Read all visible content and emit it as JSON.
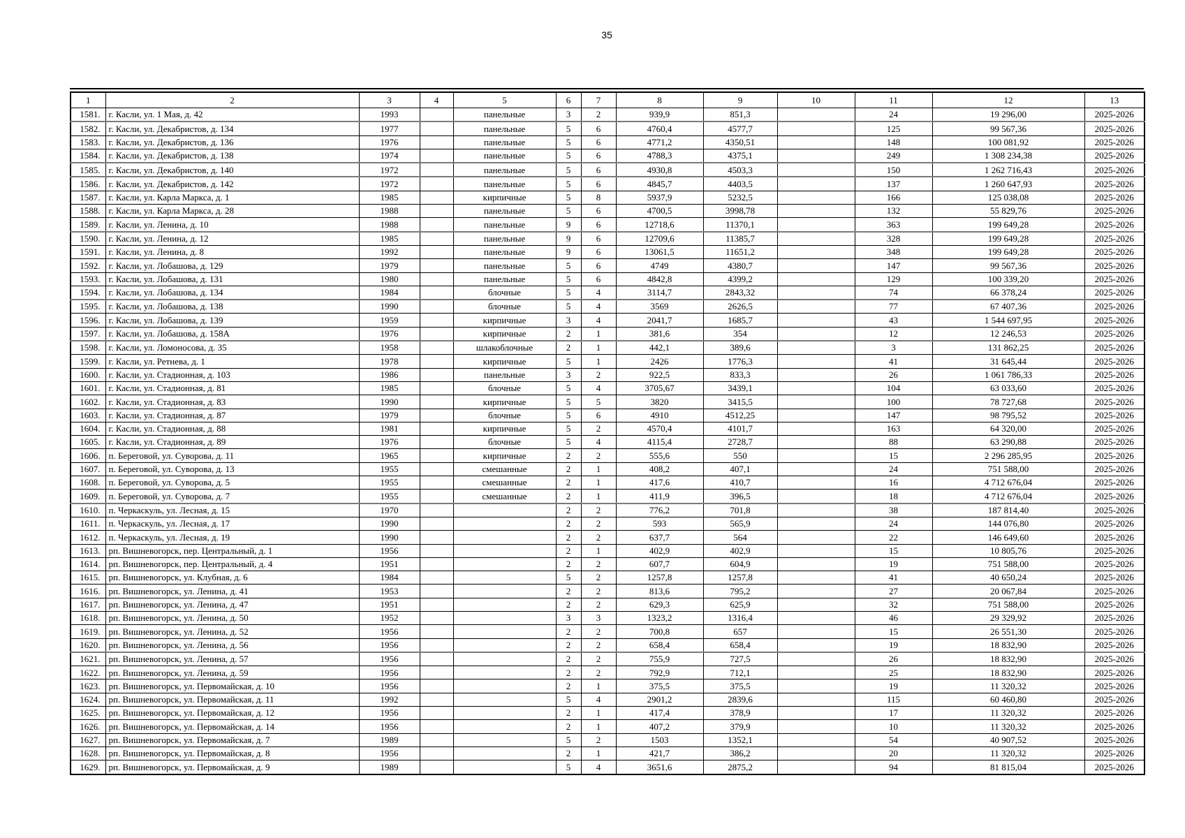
{
  "page": {
    "number": "35"
  },
  "table": {
    "header": [
      "1",
      "2",
      "3",
      "4",
      "5",
      "6",
      "7",
      "8",
      "9",
      "10",
      "11",
      "12",
      "13"
    ],
    "rows": [
      [
        "1581.",
        "г. Касли, ул. 1 Мая, д. 42",
        "1993",
        "",
        "панельные",
        "3",
        "2",
        "939,9",
        "851,3",
        "",
        "24",
        "19 296,00",
        "2025-2026"
      ],
      [
        "1582.",
        "г. Касли, ул. Декабристов, д. 134",
        "1977",
        "",
        "панельные",
        "5",
        "6",
        "4760,4",
        "4577,7",
        "",
        "125",
        "99 567,36",
        "2025-2026"
      ],
      [
        "1583.",
        "г. Касли, ул. Декабристов, д. 136",
        "1976",
        "",
        "панельные",
        "5",
        "6",
        "4771,2",
        "4350,51",
        "",
        "148",
        "100 081,92",
        "2025-2026"
      ],
      [
        "1584.",
        "г. Касли, ул. Декабристов, д. 138",
        "1974",
        "",
        "панельные",
        "5",
        "6",
        "4788,3",
        "4375,1",
        "",
        "249",
        "1 308 234,38",
        "2025-2026"
      ],
      [
        "1585.",
        "г. Касли, ул. Декабристов, д. 140",
        "1972",
        "",
        "панельные",
        "5",
        "6",
        "4930,8",
        "4503,3",
        "",
        "150",
        "1 262 716,43",
        "2025-2026"
      ],
      [
        "1586.",
        "г. Касли, ул. Декабристов, д. 142",
        "1972",
        "",
        "панельные",
        "5",
        "6",
        "4845,7",
        "4403,5",
        "",
        "137",
        "1 260 647,93",
        "2025-2026"
      ],
      [
        "1587.",
        "г. Касли, ул. Карла Маркса, д. 1",
        "1985",
        "",
        "кирпичные",
        "5",
        "8",
        "5937,9",
        "5232,5",
        "",
        "166",
        "125 038,08",
        "2025-2026"
      ],
      [
        "1588.",
        "г. Касли, ул. Карла Маркса, д. 28",
        "1988",
        "",
        "панельные",
        "5",
        "6",
        "4700,5",
        "3998,78",
        "",
        "132",
        "55 829,76",
        "2025-2026"
      ],
      [
        "1589.",
        "г. Касли, ул. Ленина, д. 10",
        "1988",
        "",
        "панельные",
        "9",
        "6",
        "12718,6",
        "11370,1",
        "",
        "363",
        "199 649,28",
        "2025-2026"
      ],
      [
        "1590.",
        "г. Касли, ул. Ленина, д. 12",
        "1985",
        "",
        "панельные",
        "9",
        "6",
        "12709,6",
        "11385,7",
        "",
        "328",
        "199 649,28",
        "2025-2026"
      ],
      [
        "1591.",
        "г. Касли, ул. Ленина, д. 8",
        "1992",
        "",
        "панельные",
        "9",
        "6",
        "13061,5",
        "11651,2",
        "",
        "348",
        "199 649,28",
        "2025-2026"
      ],
      [
        "1592.",
        "г. Касли, ул. Лобашова, д. 129",
        "1979",
        "",
        "панельные",
        "5",
        "6",
        "4749",
        "4380,7",
        "",
        "147",
        "99 567,36",
        "2025-2026"
      ],
      [
        "1593.",
        "г. Касли, ул. Лобашова, д. 131",
        "1980",
        "",
        "панельные",
        "5",
        "6",
        "4842,8",
        "4399,2",
        "",
        "129",
        "100 339,20",
        "2025-2026"
      ],
      [
        "1594.",
        "г. Касли, ул. Лобашова, д. 134",
        "1984",
        "",
        "блочные",
        "5",
        "4",
        "3114,7",
        "2843,32",
        "",
        "74",
        "66 378,24",
        "2025-2026"
      ],
      [
        "1595.",
        "г. Касли, ул. Лобашова, д. 138",
        "1990",
        "",
        "блочные",
        "5",
        "4",
        "3569",
        "2626,5",
        "",
        "77",
        "67 407,36",
        "2025-2026"
      ],
      [
        "1596.",
        "г. Касли, ул. Лобашова, д. 139",
        "1959",
        "",
        "кирпичные",
        "3",
        "4",
        "2041,7",
        "1685,7",
        "",
        "43",
        "1 544 697,95",
        "2025-2026"
      ],
      [
        "1597.",
        "г. Касли, ул. Лобашова, д. 158А",
        "1976",
        "",
        "кирпичные",
        "2",
        "1",
        "381,6",
        "354",
        "",
        "12",
        "12 246,53",
        "2025-2026"
      ],
      [
        "1598.",
        "г. Касли, ул. Ломоносова, д. 35",
        "1958",
        "",
        "шлакоблочные",
        "2",
        "1",
        "442,1",
        "389,6",
        "",
        "3",
        "131 862,25",
        "2025-2026"
      ],
      [
        "1599.",
        "г. Касли, ул. Ретнева, д. 1",
        "1978",
        "",
        "кирпичные",
        "5",
        "1",
        "2426",
        "1776,3",
        "",
        "41",
        "31 645,44",
        "2025-2026"
      ],
      [
        "1600.",
        "г. Касли, ул. Стадионная, д. 103",
        "1986",
        "",
        "панельные",
        "3",
        "2",
        "922,5",
        "833,3",
        "",
        "26",
        "1 061 786,33",
        "2025-2026"
      ],
      [
        "1601.",
        "г. Касли, ул. Стадионная, д. 81",
        "1985",
        "",
        "блочные",
        "5",
        "4",
        "3705,67",
        "3439,1",
        "",
        "104",
        "63 033,60",
        "2025-2026"
      ],
      [
        "1602.",
        "г. Касли, ул. Стадионная, д. 83",
        "1990",
        "",
        "кирпичные",
        "5",
        "5",
        "3820",
        "3415,5",
        "",
        "100",
        "78 727,68",
        "2025-2026"
      ],
      [
        "1603.",
        "г. Касли, ул. Стадионная, д. 87",
        "1979",
        "",
        "блочные",
        "5",
        "6",
        "4910",
        "4512,25",
        "",
        "147",
        "98 795,52",
        "2025-2026"
      ],
      [
        "1604.",
        "г. Касли, ул. Стадионная, д. 88",
        "1981",
        "",
        "кирпичные",
        "5",
        "2",
        "4570,4",
        "4101,7",
        "",
        "163",
        "64 320,00",
        "2025-2026"
      ],
      [
        "1605.",
        "г. Касли, ул. Стадионная, д. 89",
        "1976",
        "",
        "блочные",
        "5",
        "4",
        "4115,4",
        "2728,7",
        "",
        "88",
        "63 290,88",
        "2025-2026"
      ],
      [
        "1606.",
        "п. Береговой, ул. Суворова, д. 11",
        "1965",
        "",
        "кирпичные",
        "2",
        "2",
        "555,6",
        "550",
        "",
        "15",
        "2 296 285,95",
        "2025-2026"
      ],
      [
        "1607.",
        "п. Береговой, ул. Суворова, д. 13",
        "1955",
        "",
        "смешанные",
        "2",
        "1",
        "408,2",
        "407,1",
        "",
        "24",
        "751 588,00",
        "2025-2026"
      ],
      [
        "1608.",
        "п. Береговой, ул. Суворова, д. 5",
        "1955",
        "",
        "смешанные",
        "2",
        "1",
        "417,6",
        "410,7",
        "",
        "16",
        "4 712 676,04",
        "2025-2026"
      ],
      [
        "1609.",
        "п. Береговой, ул. Суворова, д. 7",
        "1955",
        "",
        "смешанные",
        "2",
        "1",
        "411,9",
        "396,5",
        "",
        "18",
        "4 712 676,04",
        "2025-2026"
      ],
      [
        "1610.",
        "п. Черкаскуль, ул. Лесная, д. 15",
        "1970",
        "",
        "",
        "2",
        "2",
        "776,2",
        "701,8",
        "",
        "38",
        "187 814,40",
        "2025-2026"
      ],
      [
        "1611.",
        "п. Черкаскуль, ул. Лесная, д. 17",
        "1990",
        "",
        "",
        "2",
        "2",
        "593",
        "565,9",
        "",
        "24",
        "144 076,80",
        "2025-2026"
      ],
      [
        "1612.",
        "п. Черкаскуль, ул. Лесная, д. 19",
        "1990",
        "",
        "",
        "2",
        "2",
        "637,7",
        "564",
        "",
        "22",
        "146 649,60",
        "2025-2026"
      ],
      [
        "1613.",
        "рп. Вишневогорск, пер. Центральный, д. 1",
        "1956",
        "",
        "",
        "2",
        "1",
        "402,9",
        "402,9",
        "",
        "15",
        "10 805,76",
        "2025-2026"
      ],
      [
        "1614.",
        "рп. Вишневогорск, пер. Центральный, д. 4",
        "1951",
        "",
        "",
        "2",
        "2",
        "607,7",
        "604,9",
        "",
        "19",
        "751 588,00",
        "2025-2026"
      ],
      [
        "1615.",
        "рп. Вишневогорск, ул. Клубная, д. 6",
        "1984",
        "",
        "",
        "5",
        "2",
        "1257,8",
        "1257,8",
        "",
        "41",
        "40 650,24",
        "2025-2026"
      ],
      [
        "1616.",
        "рп. Вишневогорск, ул. Ленина, д. 41",
        "1953",
        "",
        "",
        "2",
        "2",
        "813,6",
        "795,2",
        "",
        "27",
        "20 067,84",
        "2025-2026"
      ],
      [
        "1617.",
        "рп. Вишневогорск, ул. Ленина, д. 47",
        "1951",
        "",
        "",
        "2",
        "2",
        "629,3",
        "625,9",
        "",
        "32",
        "751 588,00",
        "2025-2026"
      ],
      [
        "1618.",
        "рп. Вишневогорск, ул. Ленина, д. 50",
        "1952",
        "",
        "",
        "3",
        "3",
        "1323,2",
        "1316,4",
        "",
        "46",
        "29 329,92",
        "2025-2026"
      ],
      [
        "1619.",
        "рп. Вишневогорск, ул. Ленина, д. 52",
        "1956",
        "",
        "",
        "2",
        "2",
        "700,8",
        "657",
        "",
        "15",
        "26 551,30",
        "2025-2026"
      ],
      [
        "1620.",
        "рп. Вишневогорск, ул. Ленина, д. 56",
        "1956",
        "",
        "",
        "2",
        "2",
        "658,4",
        "658,4",
        "",
        "19",
        "18 832,90",
        "2025-2026"
      ],
      [
        "1621.",
        "рп. Вишневогорск, ул. Ленина, д. 57",
        "1956",
        "",
        "",
        "2",
        "2",
        "755,9",
        "727,5",
        "",
        "26",
        "18 832,90",
        "2025-2026"
      ],
      [
        "1622.",
        "рп. Вишневогорск, ул. Ленина, д. 59",
        "1956",
        "",
        "",
        "2",
        "2",
        "792,9",
        "712,1",
        "",
        "25",
        "18 832,90",
        "2025-2026"
      ],
      [
        "1623.",
        "рп. Вишневогорск, ул. Первомайская, д. 10",
        "1956",
        "",
        "",
        "2",
        "1",
        "375,5",
        "375,5",
        "",
        "19",
        "11 320,32",
        "2025-2026"
      ],
      [
        "1624.",
        "рп. Вишневогорск, ул. Первомайская, д. 11",
        "1992",
        "",
        "",
        "5",
        "4",
        "2901,2",
        "2839,6",
        "",
        "115",
        "60 460,80",
        "2025-2026"
      ],
      [
        "1625.",
        "рп. Вишневогорск, ул. Первомайская, д. 12",
        "1956",
        "",
        "",
        "2",
        "1",
        "417,4",
        "378,9",
        "",
        "17",
        "11 320,32",
        "2025-2026"
      ],
      [
        "1626.",
        "рп. Вишневогорск, ул. Первомайская, д. 14",
        "1956",
        "",
        "",
        "2",
        "1",
        "407,2",
        "379,9",
        "",
        "10",
        "11 320,32",
        "2025-2026"
      ],
      [
        "1627.",
        "рп. Вишневогорск, ул. Первомайская, д. 7",
        "1989",
        "",
        "",
        "5",
        "2",
        "1503",
        "1352,1",
        "",
        "54",
        "40 907,52",
        "2025-2026"
      ],
      [
        "1628.",
        "рп. Вишневогорск, ул. Первомайская, д. 8",
        "1956",
        "",
        "",
        "2",
        "1",
        "421,7",
        "386,2",
        "",
        "20",
        "11 320,32",
        "2025-2026"
      ],
      [
        "1629.",
        "рп. Вишневогорск, ул. Первомайская, д. 9",
        "1989",
        "",
        "",
        "5",
        "4",
        "3651,6",
        "2875,2",
        "",
        "94",
        "81 815,04",
        "2025-2026"
      ]
    ]
  }
}
